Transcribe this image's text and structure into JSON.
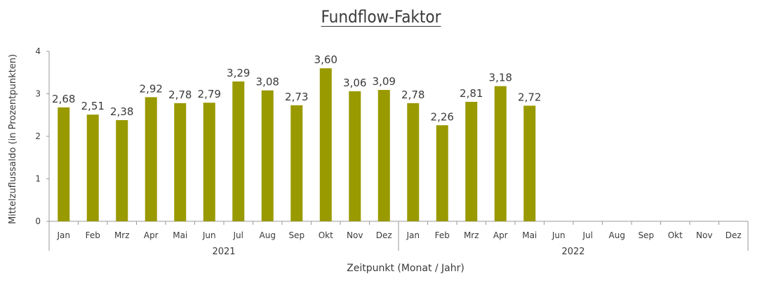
{
  "chart_data": {
    "type": "bar",
    "title": "Fundflow-Faktor",
    "xlabel": "Zeitpunkt (Monat / Jahr)",
    "ylabel": "Mittelzuflussaldo (in Prozentpunkten)",
    "ylim": [
      0,
      4
    ],
    "yticks": [
      "0",
      "1",
      "2",
      "3",
      "4"
    ],
    "categories": [
      "Jan",
      "Feb",
      "Mrz",
      "Apr",
      "Mai",
      "Jun",
      "Jul",
      "Aug",
      "Sep",
      "Okt",
      "Nov",
      "Dez",
      "Jan",
      "Feb",
      "Mrz",
      "Apr",
      "Mai",
      "Jun",
      "Jul",
      "Aug",
      "Sep",
      "Okt",
      "Nov",
      "Dez"
    ],
    "groups": [
      {
        "label": "2021",
        "start": 0,
        "end": 11
      },
      {
        "label": "2022",
        "start": 12,
        "end": 23
      }
    ],
    "values": [
      2.68,
      2.51,
      2.38,
      2.92,
      2.78,
      2.79,
      3.29,
      3.08,
      2.73,
      3.6,
      3.06,
      3.09,
      2.78,
      2.26,
      2.81,
      3.18,
      2.72,
      null,
      null,
      null,
      null,
      null,
      null,
      null
    ],
    "value_labels": [
      "2,68",
      "2,51",
      "2,38",
      "2,92",
      "2,78",
      "2,79",
      "3,29",
      "3,08",
      "2,73",
      "3,60",
      "3,06",
      "3,09",
      "2,78",
      "2,26",
      "2,81",
      "3,18",
      "2,72",
      "",
      "",
      "",
      "",
      "",
      "",
      ""
    ],
    "bar_color": "#999900",
    "grid": false,
    "legend": "none"
  }
}
